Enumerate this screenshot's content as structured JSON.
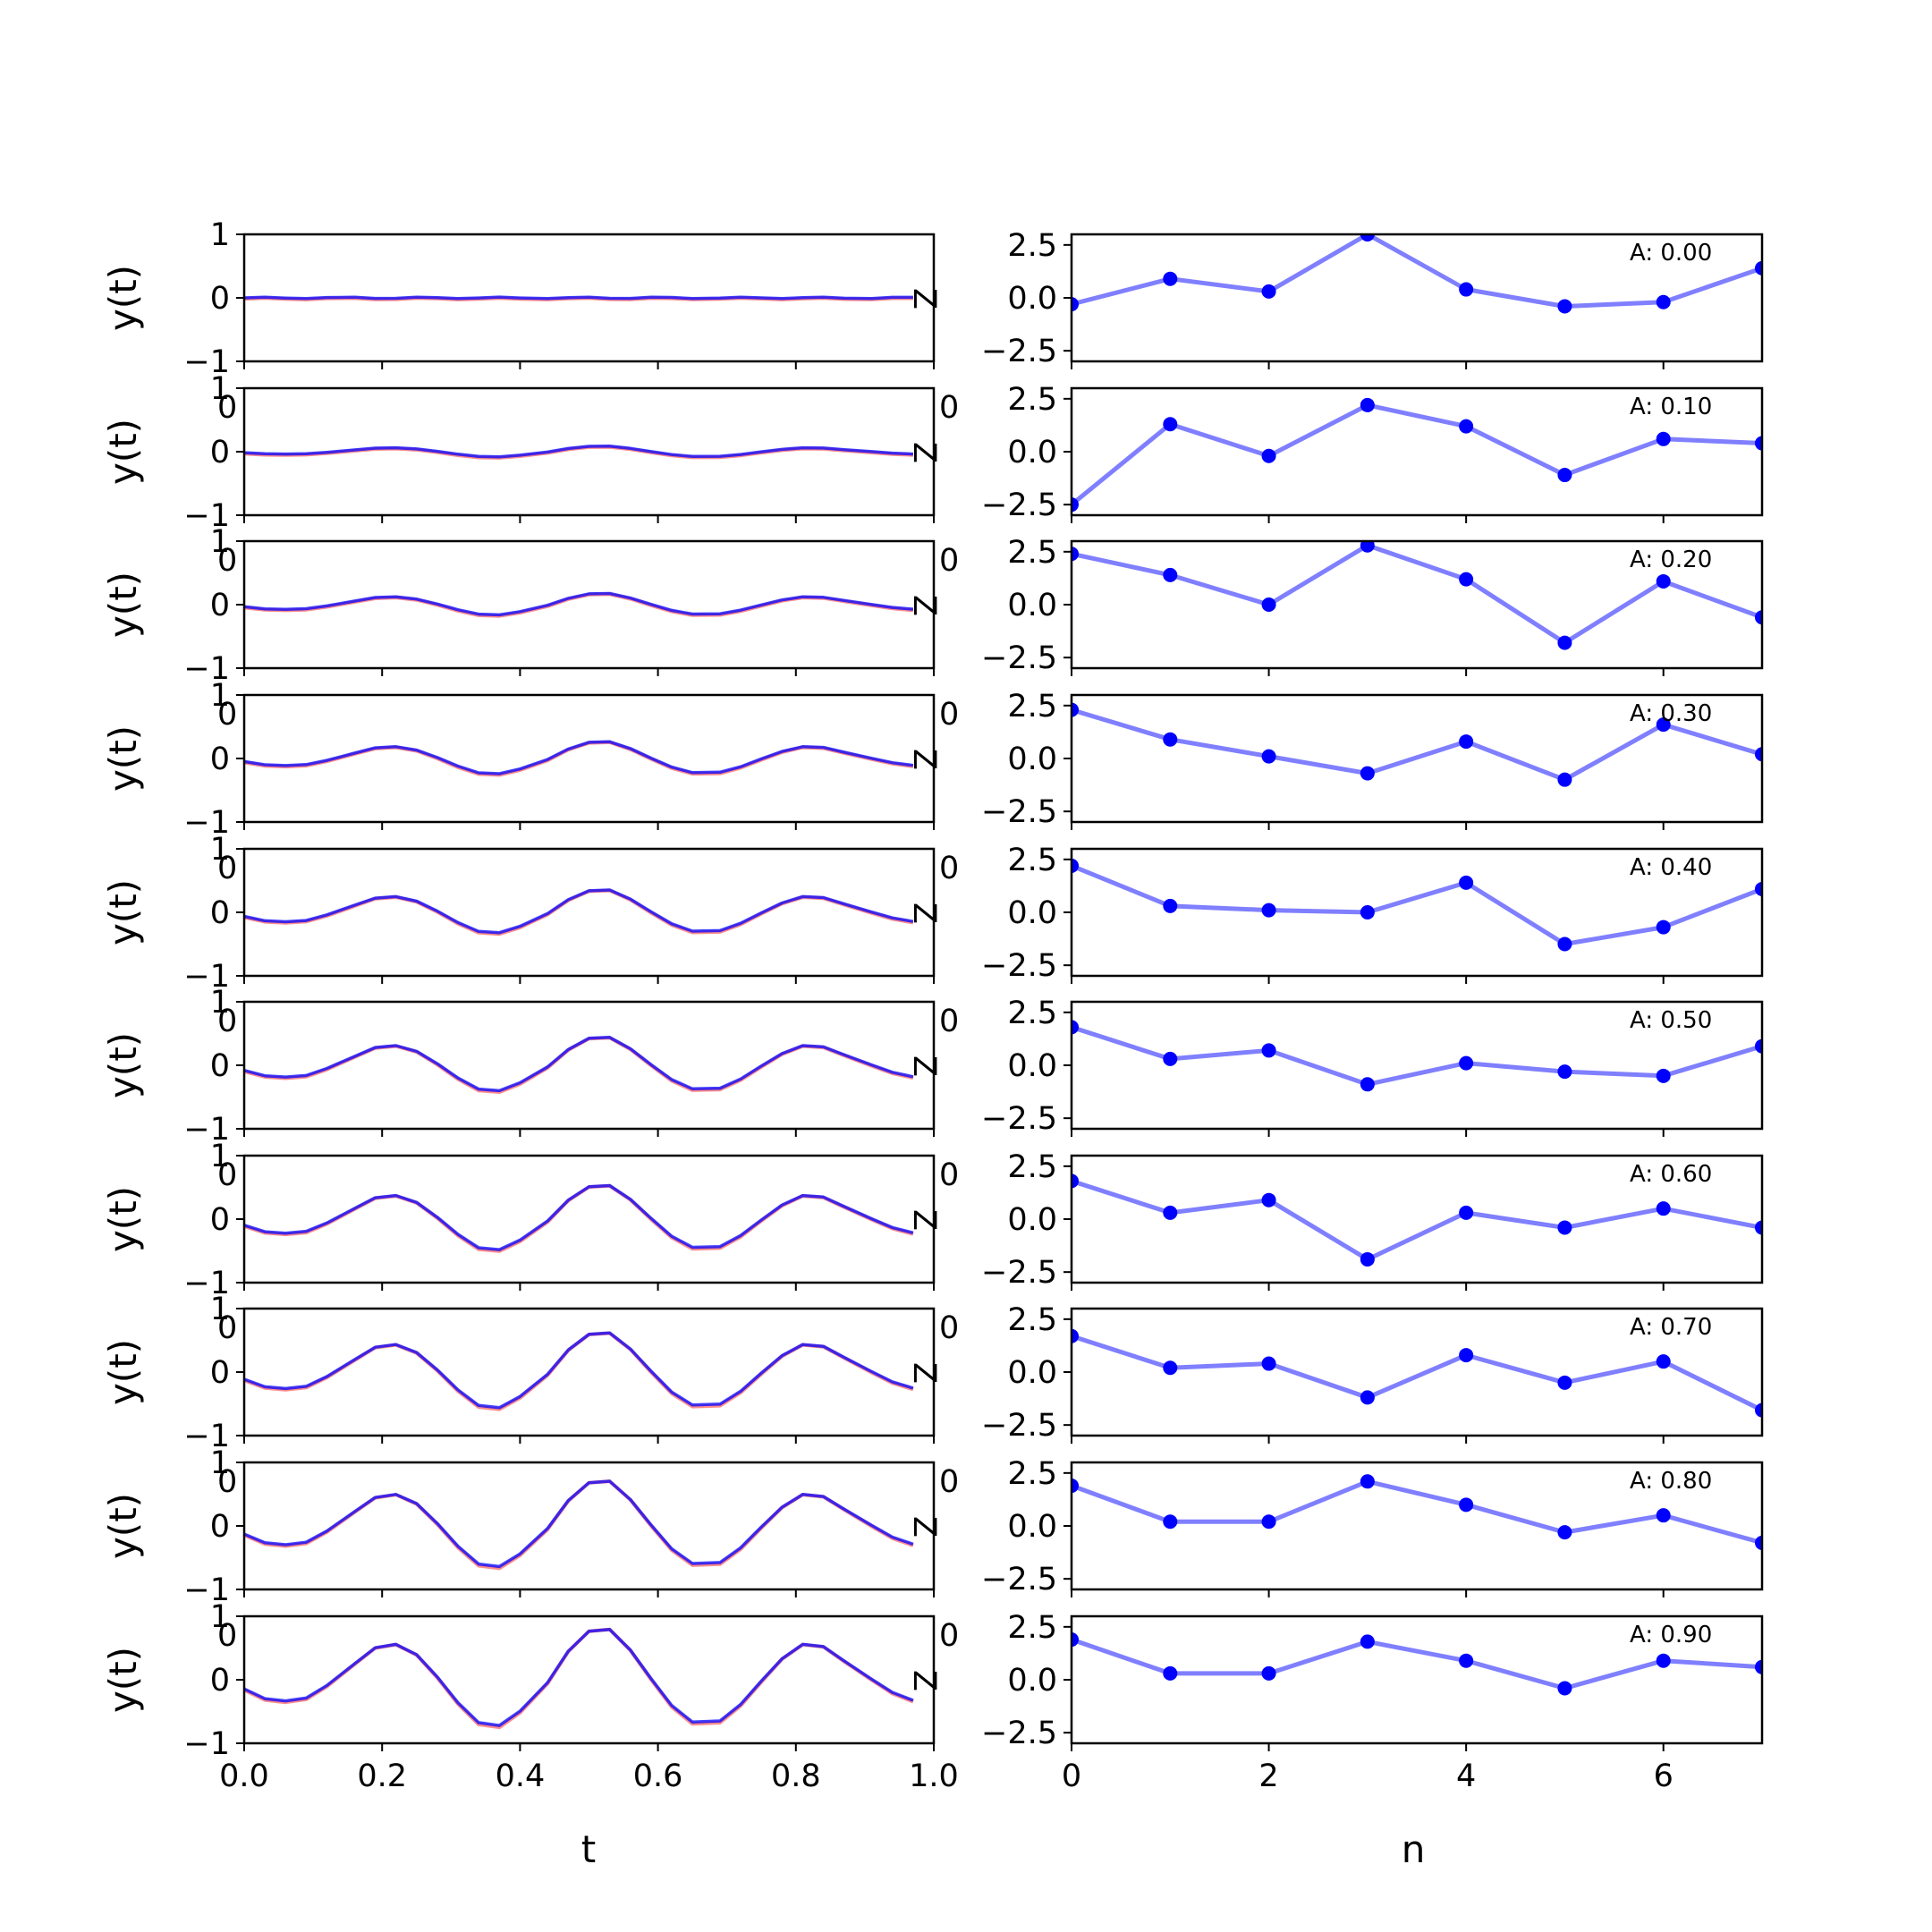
{
  "colors": {
    "left_red": "#ff0000",
    "left_blue": "#0000ff",
    "right_line": "#0000ff",
    "right_marker": "#0000ff"
  },
  "left_panel": {
    "ylabel": "y(t)",
    "xlabel": "t",
    "ylim": [
      -1,
      1
    ],
    "xlim": [
      0,
      1
    ],
    "ytick_labels": [
      "1",
      "0",
      "−1"
    ],
    "xtick_labels": [
      "0.0",
      "0.2",
      "0.4",
      "0.6",
      "0.8",
      "1.0"
    ],
    "right_edge_label": "Z",
    "ghost_label": "0"
  },
  "right_panel": {
    "xlabel": "n",
    "ylim": [
      -3,
      3
    ],
    "xlim": [
      0,
      7
    ],
    "ytick_labels": [
      "2.5",
      "0.0",
      "−2.5"
    ],
    "xtick_labels": [
      "0",
      "2",
      "4",
      "6"
    ],
    "ghost_label": "0"
  },
  "chart_data": [
    {
      "type": "line",
      "panel": "left",
      "xlabel": "t",
      "ylabel": "y(t)",
      "ylim": [
        -1,
        1
      ],
      "xlim": [
        0,
        1
      ],
      "t": [
        0.0,
        0.03,
        0.06,
        0.09,
        0.12,
        0.16,
        0.19,
        0.22,
        0.25,
        0.28,
        0.31,
        0.34,
        0.37,
        0.4,
        0.44,
        0.47,
        0.5,
        0.53,
        0.56,
        0.59,
        0.62,
        0.65,
        0.69,
        0.72,
        0.75,
        0.78,
        0.81,
        0.84,
        0.87,
        0.91,
        0.94,
        0.97
      ],
      "base_wave": [
        -0.16,
        -0.33,
        -0.37,
        -0.32,
        -0.1,
        0.28,
        0.56,
        0.62,
        0.44,
        0.05,
        -0.4,
        -0.75,
        -0.8,
        -0.55,
        -0.05,
        0.5,
        0.85,
        0.88,
        0.52,
        0.02,
        -0.45,
        -0.74,
        -0.72,
        -0.43,
        -0.02,
        0.37,
        0.62,
        0.58,
        0.33,
        0.01,
        -0.22,
        -0.36
      ],
      "amplitudes": [
        0.0,
        0.1,
        0.2,
        0.3,
        0.4,
        0.5,
        0.6,
        0.7,
        0.8,
        0.9
      ]
    },
    {
      "type": "line",
      "panel": "right",
      "xlabel": "n",
      "ylim": [
        -3,
        3
      ],
      "xlim": [
        0,
        7
      ],
      "x": [
        0,
        1,
        2,
        3,
        4,
        5,
        6,
        7
      ],
      "series": [
        {
          "annotation": "A: 0.00",
          "values": [
            -0.3,
            0.9,
            0.3,
            3.0,
            0.4,
            -0.4,
            -0.2,
            1.4
          ]
        },
        {
          "annotation": "A: 0.10",
          "values": [
            -2.5,
            1.3,
            -0.2,
            2.2,
            1.2,
            -1.1,
            0.6,
            0.4
          ]
        },
        {
          "annotation": "A: 0.20",
          "values": [
            2.4,
            1.4,
            0.0,
            2.8,
            1.2,
            -1.8,
            1.1,
            -0.6
          ]
        },
        {
          "annotation": "A: 0.30",
          "values": [
            2.3,
            0.9,
            0.1,
            -0.7,
            0.8,
            -1.0,
            1.6,
            0.2
          ]
        },
        {
          "annotation": "A: 0.40",
          "values": [
            2.2,
            0.3,
            0.1,
            0.0,
            1.4,
            -1.5,
            -0.7,
            1.1
          ]
        },
        {
          "annotation": "A: 0.50",
          "values": [
            1.8,
            0.3,
            0.7,
            -0.9,
            0.1,
            -0.3,
            -0.5,
            0.9
          ]
        },
        {
          "annotation": "A: 0.60",
          "values": [
            1.8,
            0.3,
            0.9,
            -1.9,
            0.3,
            -0.4,
            0.5,
            -0.4
          ]
        },
        {
          "annotation": "A: 0.70",
          "values": [
            1.7,
            0.2,
            0.4,
            -1.2,
            0.8,
            -0.5,
            0.5,
            -1.8
          ]
        },
        {
          "annotation": "A: 0.80",
          "values": [
            1.9,
            0.2,
            0.2,
            2.1,
            1.0,
            -0.3,
            0.5,
            -0.8
          ]
        },
        {
          "annotation": "A: 0.90",
          "values": [
            1.9,
            0.3,
            0.3,
            1.8,
            0.9,
            -0.4,
            0.9,
            0.6
          ]
        }
      ]
    }
  ]
}
